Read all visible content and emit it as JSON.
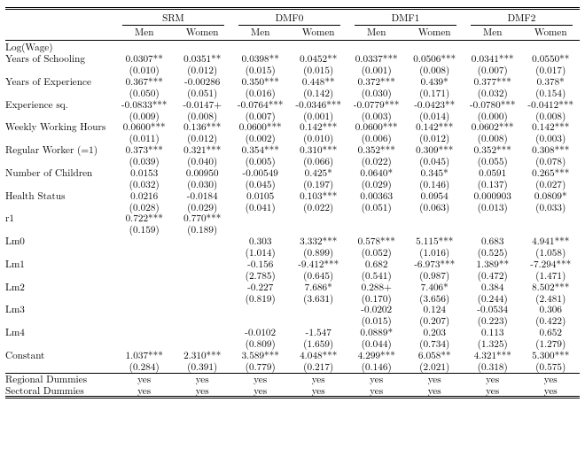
{
  "groups": [
    "SRM",
    "DMF0",
    "DMF1",
    "DMF2"
  ],
  "subcols": [
    "Men",
    "Women"
  ],
  "section": "Log(Wage)",
  "rows": [
    {
      "label": "Years of Schooling",
      "est": [
        "0.0307**",
        "0.0351**",
        "0.0398**",
        "0.0452**",
        "0.0337***",
        "0.0506***",
        "0.0341***",
        "0.0550**"
      ],
      "se": [
        "(0.010)",
        "(0.012)",
        "(0.015)",
        "(0.015)",
        "(0.001)",
        "(0.008)",
        "(0.007)",
        "(0.017)"
      ]
    },
    {
      "label": "Years of Experience",
      "est": [
        "0.367***",
        "-0.00286",
        "0.350***",
        "0.448**",
        "0.372***",
        "0.439*",
        "0.377***",
        "0.378*"
      ],
      "se": [
        "(0.050)",
        "(0.051)",
        "(0.016)",
        "(0.142)",
        "(0.030)",
        "(0.171)",
        "(0.032)",
        "(0.154)"
      ]
    },
    {
      "label": "Experience sq.",
      "est": [
        "-0.0833***",
        "-0.0147+",
        "-0.0764***",
        "-0.0346***",
        "-0.0779***",
        "-0.0423**",
        "-0.0780***",
        "-0.0412***"
      ],
      "se": [
        "(0.009)",
        "(0.008)",
        "(0.007)",
        "(0.001)",
        "(0.003)",
        "(0.014)",
        "(0.000)",
        "(0.008)"
      ]
    },
    {
      "label": "Weekly Working Hours",
      "est": [
        "0.0600***",
        "0.136***",
        "0.0600***",
        "0.142***",
        "0.0600***",
        "0.142***",
        "0.0602***",
        "0.142***"
      ],
      "se": [
        "(0.011)",
        "(0.012)",
        "(0.002)",
        "(0.010)",
        "(0.006)",
        "(0.012)",
        "(0.008)",
        "(0.003)"
      ]
    },
    {
      "label": "Regular Worker (=1)",
      "est": [
        "0.373***",
        "0.321***",
        "0.354***",
        "0.310***",
        "0.352***",
        "0.309***",
        "0.352***",
        "0.308***"
      ],
      "se": [
        "(0.039)",
        "(0.040)",
        "(0.005)",
        "(0.066)",
        "(0.022)",
        "(0.045)",
        "(0.055)",
        "(0.078)"
      ]
    },
    {
      "label": "Number of Children",
      "est": [
        "0.0153",
        "0.00950",
        "-0.00549",
        "0.425*",
        "0.0640*",
        "0.345*",
        "0.0591",
        "0.265***"
      ],
      "se": [
        "(0.032)",
        "(0.030)",
        "(0.045)",
        "(0.197)",
        "(0.029)",
        "(0.146)",
        "(0.137)",
        "(0.027)"
      ]
    },
    {
      "label": "Health Status",
      "est": [
        "0.0216",
        "-0.0184",
        "0.0105",
        "0.103***",
        "0.00363",
        "0.0954",
        "0.000903",
        "0.0809*"
      ],
      "se": [
        "(0.028)",
        "(0.029)",
        "(0.041)",
        "(0.022)",
        "(0.051)",
        "(0.063)",
        "(0.013)",
        "(0.033)"
      ]
    },
    {
      "label": "r1",
      "est": [
        "0.722***",
        "0.770***",
        "",
        "",
        "",
        "",
        "",
        ""
      ],
      "se": [
        "(0.159)",
        "(0.189)",
        "",
        "",
        "",
        "",
        "",
        ""
      ]
    },
    {
      "label": "Lm0",
      "est": [
        "",
        "",
        "0.303",
        "3.332***",
        "0.578***",
        "5.115***",
        "0.683",
        "4.941***"
      ],
      "se": [
        "",
        "",
        "(1.014)",
        "(0.899)",
        "(0.052)",
        "(1.016)",
        "(0.525)",
        "(1.058)"
      ]
    },
    {
      "label": "Lm1",
      "est": [
        "",
        "",
        "-0.156",
        "-9.412***",
        "0.682",
        "-6.973***",
        "1.389**",
        "-7.294***"
      ],
      "se": [
        "",
        "",
        "(2.785)",
        "(0.645)",
        "(0.541)",
        "(0.987)",
        "(0.472)",
        "(1.471)"
      ]
    },
    {
      "label": "Lm2",
      "est": [
        "",
        "",
        "-0.227",
        "7.686*",
        "0.288+",
        "7.406*",
        "0.384",
        "8.502***"
      ],
      "se": [
        "",
        "",
        "(0.819)",
        "(3.631)",
        "(0.170)",
        "(3.656)",
        "(0.244)",
        "(2.481)"
      ]
    },
    {
      "label": "Lm3",
      "est": [
        "",
        "",
        "",
        "",
        "-0.0202",
        "0.124",
        "-0.0534",
        "0.306"
      ],
      "se": [
        "",
        "",
        "",
        "",
        "(0.015)",
        "(0.207)",
        "(0.223)",
        "(0.422)"
      ]
    },
    {
      "label": "Lm4",
      "est": [
        "",
        "",
        "-0.0102",
        "-1.547",
        "0.0889*",
        "0.203",
        "0.113",
        "0.652"
      ],
      "se": [
        "",
        "",
        "(0.809)",
        "(1.659)",
        "(0.044)",
        "(0.734)",
        "(1.325)",
        "(1.279)"
      ]
    },
    {
      "label": "Constant",
      "est": [
        "1.037***",
        "2.310***",
        "3.589***",
        "4.048***",
        "4.299***",
        "6.058**",
        "4.321***",
        "5.300***"
      ],
      "se": [
        "(0.284)",
        "(0.391)",
        "(0.779)",
        "(0.217)",
        "(0.146)",
        "(2.021)",
        "(0.318)",
        "(0.575)"
      ]
    }
  ],
  "footerRows": [
    {
      "label": "Regional Dummies",
      "vals": [
        "yes",
        "yes",
        "yes",
        "yes",
        "yes",
        "yes",
        "yes",
        "yes"
      ]
    },
    {
      "label": "Sectoral Dummies",
      "vals": [
        "yes",
        "yes",
        "yes",
        "yes",
        "yes",
        "yes",
        "yes",
        "yes"
      ]
    }
  ]
}
